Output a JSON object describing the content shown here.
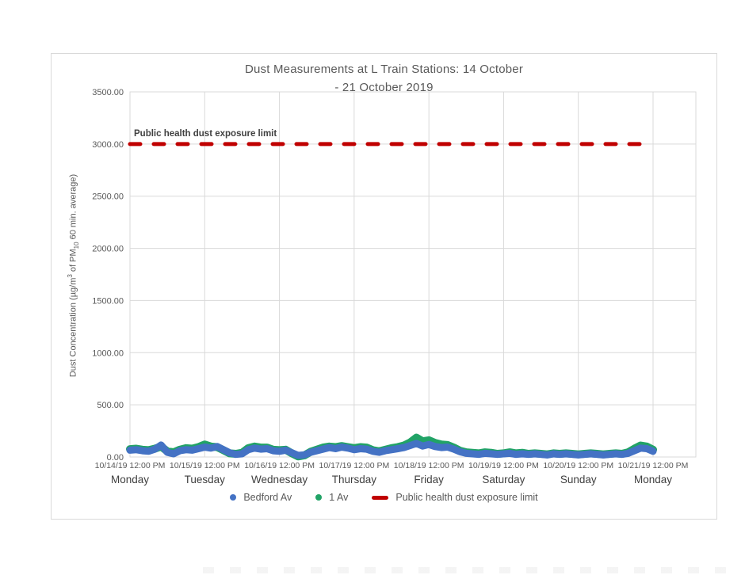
{
  "chart": {
    "title_line1": "Dust Measurements at L Train Stations: 14 October",
    "title_line2": "- 21 October 2019",
    "annotation": "Public health dust exposure limit",
    "ylabel_parts": {
      "prefix": "Dust Concentration (µg/m",
      "sup": "3",
      "mid": " of PM",
      "sub": "10",
      "suffix": " 60 min. average)"
    },
    "legend": [
      {
        "label": "Bedford Av",
        "marker": "dot",
        "color": "#4472C4"
      },
      {
        "label": "1 Av",
        "marker": "dot",
        "color": "#21A366"
      },
      {
        "label": "Public health dust exposure limit",
        "marker": "dash",
        "color": "#C00000"
      }
    ],
    "colors": {
      "grid": "#d9d9d9",
      "tick_text": "#595959",
      "day_text": "#3f3f3f",
      "title_text": "#595959"
    }
  },
  "chart_data": {
    "type": "scatter",
    "title": "Dust Measurements at L Train Stations: 14 October - 21 October 2019",
    "xlabel": "",
    "ylabel": "Dust Concentration (µg/m³ of PM₁₀ 60 min. average)",
    "ylim": [
      0,
      3500
    ],
    "ytick_step": 500,
    "ytick_labels": [
      "0.00",
      "500.00",
      "1000.00",
      "1500.00",
      "2000.00",
      "2500.00",
      "3000.00",
      "3500.00"
    ],
    "grid": true,
    "legend_position": "bottom",
    "x_ticks": [
      {
        "datetime": "10/14/19 12:00 PM",
        "day": "Monday"
      },
      {
        "datetime": "10/15/19 12:00 PM",
        "day": "Tuesday"
      },
      {
        "datetime": "10/16/19 12:00 PM",
        "day": "Wednesday"
      },
      {
        "datetime": "10/17/19 12:00 PM",
        "day": "Thursday"
      },
      {
        "datetime": "10/18/19 12:00 PM",
        "day": "Friday"
      },
      {
        "datetime": "10/19/19 12:00 PM",
        "day": "Saturday"
      },
      {
        "datetime": "10/20/19 12:00 PM",
        "day": "Sunday"
      },
      {
        "datetime": "10/21/19 12:00 PM",
        "day": "Monday"
      }
    ],
    "x_unit": "hours since 10/14/19 12:00 PM",
    "x_axis_range_hours": [
      0,
      182
    ],
    "reference_line": {
      "label": "Public health dust exposure limit",
      "value": 3000,
      "color": "#C00000",
      "style": "dashed",
      "span_hours": [
        0,
        168
      ]
    },
    "x_hours": [
      0,
      2,
      4,
      6,
      8,
      10,
      12,
      14,
      16,
      18,
      20,
      22,
      24,
      26,
      28,
      30,
      32,
      34,
      36,
      38,
      40,
      42,
      44,
      46,
      48,
      50,
      52,
      54,
      56,
      58,
      60,
      62,
      64,
      66,
      68,
      70,
      72,
      74,
      76,
      78,
      80,
      82,
      84,
      86,
      88,
      90,
      92,
      94,
      96,
      98,
      100,
      102,
      104,
      106,
      108,
      110,
      112,
      114,
      116,
      118,
      120,
      122,
      124,
      126,
      128,
      130,
      132,
      134,
      136,
      138,
      140,
      142,
      144,
      146,
      148,
      150,
      152,
      154,
      156,
      158,
      160,
      162,
      164,
      166,
      168
    ],
    "series": [
      {
        "name": "1 Av",
        "color": "#21A366",
        "values": [
          75,
          80,
          70,
          65,
          80,
          100,
          55,
          45,
          70,
          85,
          80,
          95,
          120,
          100,
          95,
          65,
          35,
          30,
          40,
          85,
          100,
          90,
          90,
          70,
          65,
          70,
          35,
          5,
          15,
          50,
          70,
          90,
          100,
          95,
          105,
          95,
          85,
          95,
          90,
          65,
          55,
          70,
          85,
          95,
          110,
          140,
          185,
          150,
          160,
          135,
          120,
          115,
          90,
          60,
          45,
          40,
          35,
          45,
          40,
          30,
          35,
          45,
          35,
          40,
          30,
          35,
          30,
          25,
          35,
          30,
          35,
          30,
          25,
          30,
          35,
          30,
          25,
          30,
          35,
          30,
          45,
          80,
          110,
          100,
          70
        ]
      },
      {
        "name": "Bedford Av",
        "color": "#4472C4",
        "values": [
          65,
          70,
          60,
          55,
          75,
          115,
          45,
          30,
          60,
          70,
          65,
          80,
          95,
          85,
          100,
          70,
          40,
          25,
          30,
          70,
          85,
          75,
          80,
          60,
          55,
          65,
          40,
          15,
          20,
          45,
          60,
          75,
          90,
          80,
          95,
          85,
          70,
          80,
          75,
          55,
          45,
          60,
          70,
          80,
          90,
          110,
          130,
          105,
          120,
          100,
          90,
          95,
          75,
          50,
          35,
          30,
          25,
          35,
          30,
          25,
          30,
          35,
          25,
          30,
          25,
          30,
          25,
          20,
          30,
          25,
          30,
          25,
          20,
          25,
          30,
          25,
          20,
          25,
          30,
          25,
          35,
          60,
          85,
          80,
          55
        ]
      }
    ]
  }
}
